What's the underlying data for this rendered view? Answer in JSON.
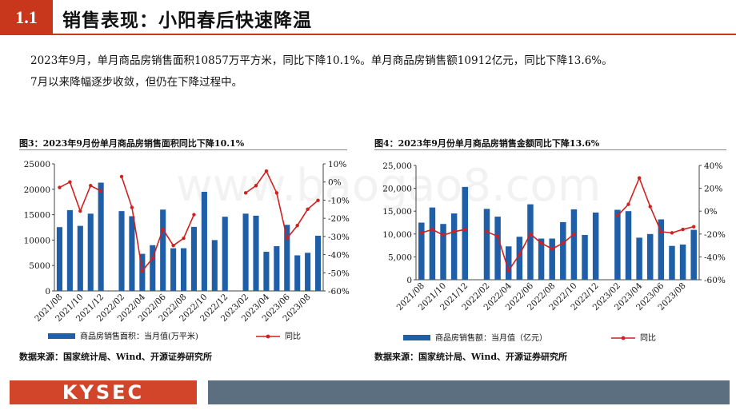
{
  "header": {
    "section_number": "1.1",
    "title": "销售表现：小阳春后快速降温"
  },
  "summary": {
    "line1": "2023年9月，单月商品房销售面积10857万平方米，同比下降10.1%。单月商品房销售额10912亿元，同比下降13.6%。",
    "line2": "7月以来降幅逐步收敛，但仍在下降过程中。"
  },
  "watermark": "www.baogao8.com",
  "footer": {
    "logo_text": "KYSEC"
  },
  "colors": {
    "bar": "#1f5fa8",
    "line": "#d21f1f",
    "brand": "#c8371c",
    "footer_bar": "#5b6f80"
  },
  "figures": [
    {
      "title": "图3：2023年9月份单月商品房销售面积同比下降10.1%",
      "source": "数据来源：国家统计局、Wind、开源证券研究所"
    },
    {
      "title": "图4：2023年9月份单月商品房销售金额同比下降13.6%",
      "source": "数据来源：国家统计局、Wind、开源证券研究所"
    }
  ],
  "chart_data": [
    {
      "type": "bar",
      "x": [
        "2021/08",
        "2021/09",
        "2021/10",
        "2021/11",
        "2021/12",
        "2022/01",
        "2022/02",
        "2022/03",
        "2022/04",
        "2022/05",
        "2022/06",
        "2022/07",
        "2022/08",
        "2022/09",
        "2022/10",
        "2022/11",
        "2022/12",
        "2023/01",
        "2023/02",
        "2023/03",
        "2023/04",
        "2023/05",
        "2023/06",
        "2023/07",
        "2023/08",
        "2023/09"
      ],
      "x_tick_labels": [
        "2021/08",
        "2021/10",
        "2021/12",
        "2022/02",
        "2022/04",
        "2022/06",
        "2022/08",
        "2022/10",
        "2022/12",
        "2023/02",
        "2023/04",
        "2023/06",
        "2023/08"
      ],
      "series": [
        {
          "name": "商品房销售面积：当月值(万平米)",
          "axis": "left",
          "type": "bar",
          "values": [
            12550,
            15900,
            12800,
            15200,
            21300,
            null,
            15700,
            14700,
            7300,
            9000,
            16000,
            8400,
            8400,
            12600,
            19500,
            10000,
            14600,
            null,
            15200,
            14800,
            7700,
            8800,
            13000,
            7000,
            7500,
            10857
          ]
        },
        {
          "name": "同比",
          "axis": "right",
          "type": "line",
          "unit": "%",
          "values": [
            -3,
            0,
            -16,
            -2,
            -5,
            null,
            3,
            -14,
            -49,
            -42,
            -26,
            -35,
            -31,
            -18,
            null,
            null,
            null,
            null,
            -6,
            -2,
            6,
            -6,
            -31,
            -24,
            -15,
            -10.1
          ]
        }
      ],
      "y_left": {
        "range": [
          0,
          25000
        ],
        "ticks": [
          "0",
          "5000",
          "10000",
          "15000",
          "20000",
          "25000"
        ]
      },
      "y_right": {
        "range": [
          -60,
          10
        ],
        "ticks": [
          "-60%",
          "-50%",
          "-40%",
          "-30%",
          "-20%",
          "-10%",
          "0%",
          "10%"
        ]
      }
    },
    {
      "type": "bar",
      "x": [
        "2021/08",
        "2021/09",
        "2021/10",
        "2021/11",
        "2021/12",
        "2022/01",
        "2022/02",
        "2022/03",
        "2022/04",
        "2022/05",
        "2022/06",
        "2022/07",
        "2022/08",
        "2022/09",
        "2022/10",
        "2022/11",
        "2022/12",
        "2023/01",
        "2023/02",
        "2023/03",
        "2023/04",
        "2023/05",
        "2023/06",
        "2023/07",
        "2023/08",
        "2023/09"
      ],
      "x_tick_labels": [
        "2021/08",
        "2021/10",
        "2021/12",
        "2022/02",
        "2022/04",
        "2022/06",
        "2022/08",
        "2022/10",
        "2022/12",
        "2023/02",
        "2023/04",
        "2023/06",
        "2023/08"
      ],
      "series": [
        {
          "name": "商品房销售额：当月值（亿元）",
          "axis": "left",
          "type": "bar",
          "values": [
            12500,
            15800,
            12200,
            14500,
            20300,
            null,
            15500,
            13800,
            7300,
            9400,
            16500,
            9000,
            9000,
            12600,
            15400,
            9800,
            14700,
            null,
            15300,
            15000,
            9200,
            10000,
            13200,
            7400,
            7700,
            10912
          ]
        },
        {
          "name": "同比",
          "axis": "right",
          "type": "line",
          "unit": "%",
          "values": [
            -19,
            -16,
            -21,
            -18,
            -16,
            null,
            -18,
            -22,
            -52,
            -38,
            -20,
            -28,
            -33,
            -28,
            -20,
            null,
            null,
            null,
            -4,
            6,
            29,
            4,
            -18,
            -19,
            -16,
            -13.6
          ]
        }
      ],
      "y_left": {
        "range": [
          0,
          25000
        ],
        "ticks": [
          "0",
          "5,000",
          "10,000",
          "15,000",
          "20,000",
          "25,000"
        ]
      },
      "y_right": {
        "range": [
          -60,
          40
        ],
        "ticks": [
          "-60%",
          "-40%",
          "-20%",
          "0%",
          "20%",
          "40%"
        ]
      }
    }
  ]
}
